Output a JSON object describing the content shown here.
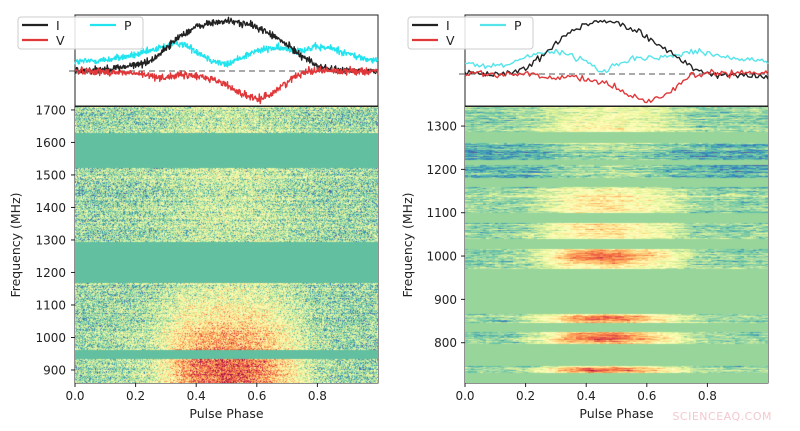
{
  "watermark": "SCIENCEAQ.COM",
  "chart_data": [
    {
      "type": "line+heatmap",
      "profile": {
        "legend": [
          "I",
          "V",
          "P"
        ],
        "legend_placement": "top-left",
        "colors": {
          "I": "#222222",
          "V": "#e0383a",
          "P": "#22e4ee"
        },
        "zero_line": "dashed",
        "phase": [
          0,
          0.05,
          0.1,
          0.15,
          0.2,
          0.25,
          0.3,
          0.35,
          0.4,
          0.45,
          0.5,
          0.55,
          0.6,
          0.65,
          0.7,
          0.75,
          0.8,
          0.85,
          0.9,
          0.95,
          1.0
        ],
        "I": [
          0,
          0.02,
          0.04,
          0.07,
          0.12,
          0.2,
          0.45,
          0.72,
          0.88,
          0.96,
          1.0,
          0.96,
          0.88,
          0.72,
          0.52,
          0.3,
          0.1,
          0.02,
          0,
          0,
          0
        ],
        "V": [
          0,
          0,
          -0.02,
          -0.03,
          -0.05,
          -0.1,
          -0.13,
          -0.08,
          -0.1,
          -0.15,
          -0.28,
          -0.45,
          -0.58,
          -0.45,
          -0.22,
          -0.02,
          0.02,
          0,
          0,
          0,
          0
        ],
        "P": [
          0.18,
          0.2,
          0.22,
          0.27,
          0.32,
          0.4,
          0.5,
          0.56,
          0.4,
          0.22,
          0.12,
          0.28,
          0.4,
          0.46,
          0.44,
          0.42,
          0.48,
          0.45,
          0.35,
          0.25,
          0.2
        ]
      },
      "heatmap": {
        "colormap": "Spectral_r",
        "xlabel": "Pulse Phase",
        "ylabel": "Frequency (MHz)",
        "xlim": [
          0,
          1.0
        ],
        "ylim": [
          860,
          1709
        ],
        "xticks": [
          "0.0",
          "0.2",
          "0.4",
          "0.6",
          "0.8"
        ],
        "yticks": [
          "900",
          "1000",
          "1100",
          "1200",
          "1300",
          "1400",
          "1500",
          "1600",
          "1700"
        ],
        "masked_bands_mhz": [
          [
            1522,
            1630
          ],
          [
            1168,
            1294
          ],
          [
            935,
            962
          ]
        ]
      }
    },
    {
      "type": "line+heatmap",
      "profile": {
        "legend": [
          "I",
          "V",
          "P"
        ],
        "legend_placement": "top-left",
        "colors": {
          "I": "#222222",
          "V": "#e0383a",
          "P": "#55e4ea"
        },
        "zero_line": "dashed",
        "phase": [
          0,
          0.05,
          0.1,
          0.15,
          0.2,
          0.25,
          0.3,
          0.35,
          0.4,
          0.45,
          0.5,
          0.55,
          0.6,
          0.65,
          0.7,
          0.75,
          0.8,
          0.85,
          0.9,
          0.95,
          1.0
        ],
        "I": [
          0,
          0,
          0,
          0.02,
          0.1,
          0.3,
          0.55,
          0.8,
          0.88,
          0.95,
          0.92,
          0.8,
          0.66,
          0.5,
          0.3,
          0.1,
          0,
          -0.03,
          -0.03,
          0,
          -0.05
        ],
        "V": [
          0,
          0.02,
          -0.03,
          0.02,
          0,
          -0.05,
          -0.08,
          -0.05,
          -0.1,
          -0.15,
          -0.25,
          -0.38,
          -0.47,
          -0.42,
          -0.22,
          -0.02,
          0.02,
          0.02,
          0.0,
          0.02,
          0.03
        ],
        "P": [
          0.2,
          0.15,
          0.14,
          0.18,
          0.3,
          0.38,
          0.4,
          0.35,
          0.2,
          0.02,
          0.15,
          0.25,
          0.28,
          0.3,
          0.35,
          0.4,
          0.38,
          0.32,
          0.28,
          0.26,
          0.2
        ]
      },
      "heatmap": {
        "colormap": "Spectral_r",
        "xlabel": "Pulse Phase",
        "ylabel": "Frequency (MHz)",
        "xlim": [
          0,
          1.0
        ],
        "ylim": [
          707,
          1344
        ],
        "xticks": [
          "0.0",
          "0.2",
          "0.4",
          "0.6",
          "0.8"
        ],
        "yticks": [
          "800",
          "900",
          "1000",
          "1100",
          "1200",
          "1300"
        ],
        "masked_bands_mhz": [
          [
            1260,
            1286
          ],
          [
            1210,
            1222
          ],
          [
            1160,
            1180
          ],
          [
            1077,
            1100
          ],
          [
            1017,
            1040
          ],
          [
            867,
            970
          ],
          [
            824,
            845
          ],
          [
            746,
            796
          ],
          [
            707,
            729
          ]
        ]
      }
    }
  ]
}
